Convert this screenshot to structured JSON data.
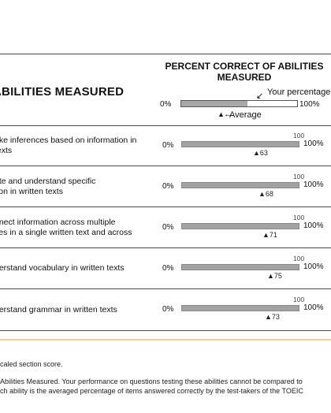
{
  "header": {
    "abilities_heading": "ABILITIES MEASURED",
    "percent_heading": "PERCENT CORRECT OF ABILITIES MEASURED",
    "legend_zero": "0%",
    "legend_hundred": "100%",
    "your_percentage_label": "Your percentage",
    "average_label": "Average"
  },
  "rows": [
    {
      "ability": "ake inferences based on information in\ntexts",
      "zero": "0%",
      "top": "100",
      "hundred": "100%",
      "average": "63"
    },
    {
      "ability": "ate and understand specific\ntion in written texts",
      "zero": "0%",
      "top": "100",
      "hundred": "100%",
      "average": "68"
    },
    {
      "ability": "nnect information across multiple\nces in a single written text and across",
      "zero": "0%",
      "top": "100",
      "hundred": "100%",
      "average": "71"
    },
    {
      "ability": "derstand vocabulary in written texts",
      "zero": "0%",
      "top": "100",
      "hundred": "100%",
      "average": "75"
    },
    {
      "ability": "derstand grammar in written texts",
      "zero": "0%",
      "top": "100",
      "hundred": "100%",
      "average": "73"
    }
  ],
  "footnotes": {
    "line1": "caled section score.",
    "line2": "Abilities Measured. Your performance on questions testing these abilities cannot be compared to",
    "line3": "ch ability is the averaged percentage of items answered correctly by the test-takers of the TOEIC"
  }
}
